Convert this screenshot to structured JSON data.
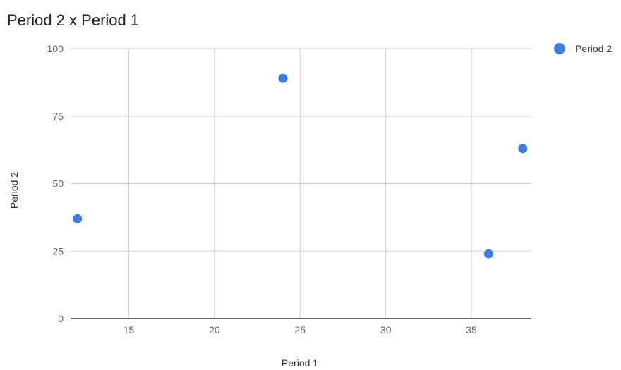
{
  "chart_data": {
    "type": "scatter",
    "title": "Period 2 x Period 1",
    "xlabel": "Period 1",
    "ylabel": "Period 2",
    "xlim": [
      11.6,
      38.5
    ],
    "ylim": [
      0,
      100
    ],
    "x_ticks": [
      "15",
      "20",
      "25",
      "30",
      "35"
    ],
    "y_ticks": [
      "0",
      "25",
      "50",
      "75",
      "100"
    ],
    "grid": true,
    "legend_position": "right",
    "series": [
      {
        "name": "Period 2",
        "color": "#3d7de3",
        "points": [
          {
            "x": 12,
            "y": 37
          },
          {
            "x": 24,
            "y": 89
          },
          {
            "x": 36,
            "y": 24
          },
          {
            "x": 38,
            "y": 63
          }
        ]
      }
    ]
  }
}
